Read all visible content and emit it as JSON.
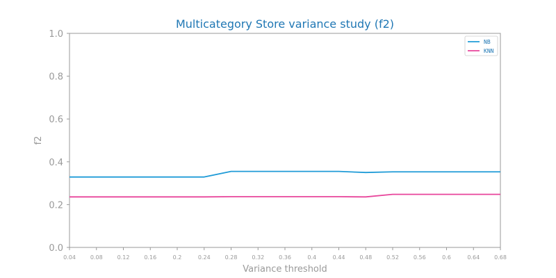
{
  "chart_data": {
    "type": "line",
    "title": "Multicategory Store variance study (f2)",
    "xlabel": "Variance threshold",
    "ylabel": "f2",
    "x": [
      0.04,
      0.08,
      0.12,
      0.16,
      0.2,
      0.24,
      0.28,
      0.32,
      0.36,
      0.4,
      0.44,
      0.48,
      0.52,
      0.56,
      0.6,
      0.64,
      0.68
    ],
    "x_tick_labels": [
      "0.04",
      "0.08",
      "0.12",
      "0.16",
      "0.2",
      "0.24",
      "0.28",
      "0.32",
      "0.36",
      "0.4",
      "0.44",
      "0.48",
      "0.52",
      "0.56",
      "0.6",
      "0.64",
      "0.68"
    ],
    "y_tick_labels": [
      "0.0",
      "0.2",
      "0.4",
      "0.6",
      "0.8",
      "1.0"
    ],
    "xlim": [
      0.04,
      0.68
    ],
    "ylim": [
      0.0,
      1.0
    ],
    "grid": false,
    "legend_position": "top-right",
    "series": [
      {
        "name": "NB",
        "color": "#1f9bd7",
        "values": [
          0.329,
          0.329,
          0.329,
          0.329,
          0.329,
          0.329,
          0.355,
          0.355,
          0.355,
          0.355,
          0.355,
          0.35,
          0.353,
          0.353,
          0.353,
          0.353,
          0.353
        ]
      },
      {
        "name": "KNN",
        "color": "#e8459b",
        "values": [
          0.236,
          0.236,
          0.236,
          0.236,
          0.236,
          0.236,
          0.237,
          0.237,
          0.237,
          0.237,
          0.237,
          0.236,
          0.248,
          0.248,
          0.248,
          0.248,
          0.248
        ]
      }
    ],
    "colors": {
      "title": "#1f77b4",
      "axis": "#999999",
      "frame": "#999999",
      "legend_text": "#1f77b4"
    }
  }
}
